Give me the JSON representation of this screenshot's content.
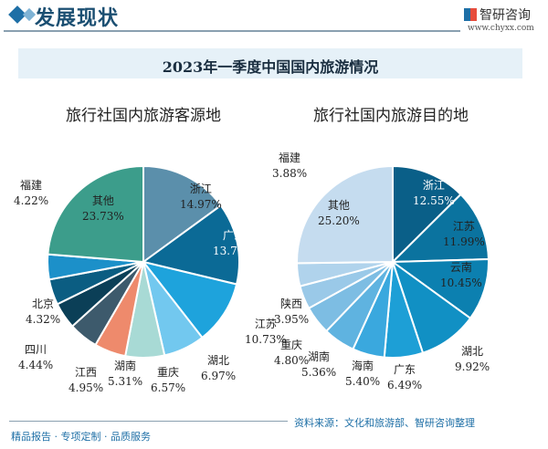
{
  "header": {
    "title": "发展现状",
    "logo_text": "智研咨询",
    "url": "www.chyxx.com"
  },
  "banner_title": "2023年一季度中国国内旅游情况",
  "footer": {
    "left": "精品报告 · 专项定制 · 品质服务",
    "source": "资料来源：文化和旅游部、智研咨询整理"
  },
  "chart_data": [
    {
      "type": "pie",
      "title": "旅行社国内旅游客源地",
      "categories": [
        "浙江",
        "广东",
        "江苏",
        "湖北",
        "重庆",
        "湖南",
        "江西",
        "四川",
        "北京",
        "福建",
        "其他"
      ],
      "values": [
        14.97,
        13.78,
        10.73,
        6.97,
        6.57,
        5.31,
        4.95,
        4.44,
        4.32,
        4.22,
        23.73
      ],
      "labels": [
        "14.97%",
        "13.78%",
        "10.73%",
        "6.97%",
        "6.57%",
        "5.31%",
        "4.95%",
        "4.44%",
        "4.32%",
        "4.22%",
        "23.73%"
      ],
      "colors": [
        "#5b8fab",
        "#0b6a96",
        "#1ea3dc",
        "#72c8ef",
        "#a8dad5",
        "#ee8a6c",
        "#3d5a6c",
        "#0b3f57",
        "#0b5d82",
        "#1c90c9",
        "#3c9d8b"
      ]
    },
    {
      "type": "pie",
      "title": "旅行社国内旅游目的地",
      "categories": [
        "浙江",
        "江苏",
        "云南",
        "湖北",
        "广东",
        "海南",
        "湖南",
        "重庆",
        "陕西",
        "福建",
        "其他"
      ],
      "values": [
        12.55,
        11.99,
        10.45,
        9.92,
        6.49,
        5.4,
        5.36,
        4.8,
        3.95,
        3.88,
        25.2
      ],
      "labels": [
        "12.55%",
        "11.99%",
        "10.45%",
        "9.92%",
        "6.49%",
        "5.40%",
        "5.36%",
        "4.80%",
        "3.95%",
        "3.88%",
        "25.20%"
      ],
      "colors": [
        "#0a5f88",
        "#0b739f",
        "#0c80b0",
        "#1190c4",
        "#1d9fd6",
        "#3aa8de",
        "#5fb3e0",
        "#7dbde3",
        "#9ac9e8",
        "#b0d3ec",
        "#c5dcef"
      ]
    }
  ]
}
